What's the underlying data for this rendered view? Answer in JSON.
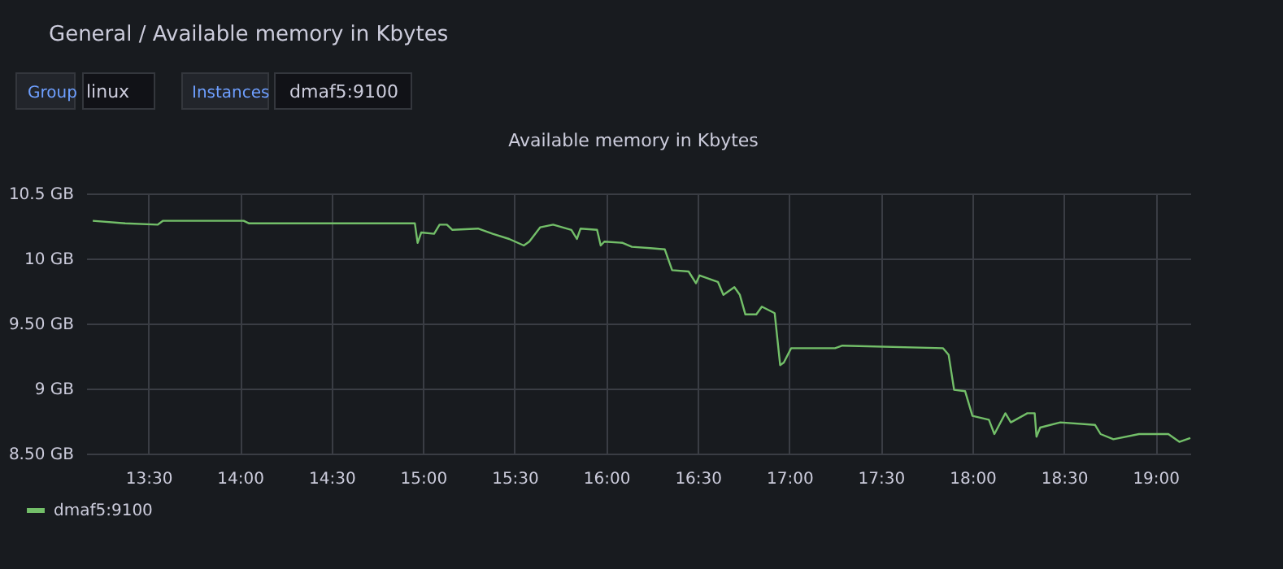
{
  "chart_data": {
    "type": "line",
    "title": "Available memory in Kbytes",
    "annotations": [
      "General / Available memory in Kbytes",
      "Group",
      "linux",
      "Instances",
      "dmaf5:9100"
    ],
    "xlim": [
      13.16,
      19.19
    ],
    "xticks": [
      {
        "value": 13.5,
        "label": "13:30"
      },
      {
        "value": 14,
        "label": "14:00"
      },
      {
        "value": 14.5,
        "label": "14:30"
      },
      {
        "value": 15,
        "label": "15:00"
      },
      {
        "value": 15.5,
        "label": "15:30"
      },
      {
        "value": 16,
        "label": "16:00"
      },
      {
        "value": 16.5,
        "label": "16:30"
      },
      {
        "value": 17,
        "label": "17:00"
      },
      {
        "value": 17.5,
        "label": "17:30"
      },
      {
        "value": 18,
        "label": "18:00"
      },
      {
        "value": 18.5,
        "label": "18:30"
      },
      {
        "value": 19,
        "label": "19:00"
      }
    ],
    "ylim": [
      8.5,
      10.5
    ],
    "yticks": [
      {
        "value": 8.5,
        "label": "8.50 GB"
      },
      {
        "value": 9,
        "label": "9 GB"
      },
      {
        "value": 9.5,
        "label": "9.50 GB"
      },
      {
        "value": 10,
        "label": "10 GB"
      },
      {
        "value": 10.5,
        "label": "10.5 GB"
      }
    ],
    "grid": true,
    "legend": "bottom left",
    "line_style": "solid",
    "series": [
      {
        "name": "dmaf5:9100",
        "color": "#73bf69",
        "x": [
          13.196,
          13.373,
          13.55,
          13.58,
          14.02,
          14.05,
          14.14,
          14.955,
          14.97,
          14.99,
          15.06,
          15.09,
          15.13,
          15.16,
          15.3,
          15.38,
          15.47,
          15.55,
          15.58,
          15.64,
          15.71,
          15.81,
          15.84,
          15.86,
          15.95,
          15.97,
          15.99,
          16.09,
          16.14,
          16.24,
          16.32,
          16.36,
          16.45,
          16.49,
          16.51,
          16.61,
          16.64,
          16.7,
          16.73,
          16.76,
          16.82,
          16.85,
          16.92,
          16.95,
          16.97,
          17.01,
          17.25,
          17.29,
          17.84,
          17.87,
          17.9,
          17.96,
          18.0,
          18.09,
          18.12,
          18.18,
          18.21,
          18.3,
          18.34,
          18.35,
          18.37,
          18.48,
          18.67,
          18.7,
          18.77,
          18.91,
          19.07,
          19.13,
          19.19
        ],
        "values": [
          10.29,
          10.27,
          10.26,
          10.29,
          10.29,
          10.27,
          10.27,
          10.27,
          10.12,
          10.2,
          10.19,
          10.26,
          10.26,
          10.22,
          10.23,
          10.19,
          10.15,
          10.1,
          10.13,
          10.24,
          10.26,
          10.22,
          10.15,
          10.23,
          10.22,
          10.1,
          10.13,
          10.12,
          10.09,
          10.08,
          10.07,
          9.91,
          9.9,
          9.81,
          9.87,
          9.82,
          9.72,
          9.78,
          9.72,
          9.57,
          9.57,
          9.63,
          9.58,
          9.18,
          9.2,
          9.31,
          9.31,
          9.33,
          9.31,
          9.26,
          8.99,
          8.98,
          8.79,
          8.76,
          8.65,
          8.81,
          8.74,
          8.81,
          8.81,
          8.63,
          8.7,
          8.74,
          8.72,
          8.65,
          8.61,
          8.65,
          8.65,
          8.59,
          8.62
        ]
      }
    ]
  }
}
